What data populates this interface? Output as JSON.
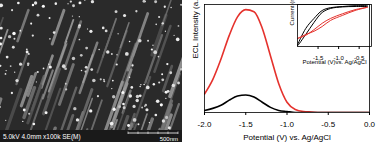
{
  "image": {
    "info": "5.0kV 4.0mm x100k SE(M)",
    "scale_bar": "500nm"
  },
  "chart_data": [
    {
      "type": "line",
      "x_label": "Potential (V) vs. Ag/AgCl",
      "y_label": "ECL Intensity (a.u.)",
      "x": [
        -2.0,
        -1.9,
        -1.8,
        -1.7,
        -1.6,
        -1.5,
        -1.4,
        -1.3,
        -1.2,
        -1.1,
        -1.0,
        -0.9,
        -0.8,
        -0.7,
        -0.6,
        -0.5,
        -0.4,
        -0.3,
        -0.2,
        -0.1,
        0.0
      ],
      "series": [
        {
          "color": "#e5322d",
          "values": [
            18,
            32,
            52,
            75,
            93,
            100,
            98,
            82,
            55,
            28,
            10,
            3,
            1,
            0.5,
            0,
            0,
            0,
            0,
            0,
            0,
            0
          ]
        },
        {
          "color": "#000000",
          "values": [
            2,
            4,
            7,
            12,
            16,
            17,
            15,
            10,
            5,
            2,
            1,
            0,
            0,
            0,
            0,
            0,
            0,
            0,
            0,
            0,
            0
          ]
        }
      ],
      "xlim": [
        -2.0,
        0.0
      ],
      "xticks": [
        {
          "value": -2.0,
          "label": "-2.0"
        },
        -1.5,
        {
          "value": -1.0,
          "label": "-1.0"
        },
        -0.5,
        {
          "value": 0.0,
          "label": "0.0"
        }
      ],
      "ylim": [
        0,
        105
      ],
      "tick_labels": "x"
    },
    {
      "type": "line",
      "x_label": "Potential (V)vs. Ag/AgCl",
      "y_label": "Current (mA)",
      "x": [
        -0.3,
        -0.6,
        -0.9,
        -1.2,
        -1.4,
        -1.6,
        -1.8,
        -2.0,
        -1.8,
        -1.6,
        -1.4,
        -1.2,
        -0.9,
        -0.6,
        -0.3
      ],
      "series": [
        {
          "color": "#000000",
          "values": [
            0,
            0,
            -0.01,
            -0.05,
            -0.15,
            -0.4,
            -0.7,
            -0.98,
            -0.55,
            -0.3,
            -0.1,
            -0.03,
            0,
            0.02,
            0.02
          ]
        },
        {
          "color": "#e5322d",
          "values": [
            -0.02,
            -0.1,
            -0.22,
            -0.35,
            -0.5,
            -0.62,
            -0.7,
            -0.8,
            -0.72,
            -0.58,
            -0.42,
            -0.3,
            -0.18,
            -0.08,
            -0.02
          ]
        }
      ],
      "xlim": [
        -2.0,
        -0.2
      ],
      "xticks": [
        -1.5,
        {
          "value": -1.0,
          "label": "-1.0"
        },
        -0.5
      ],
      "ylim": [
        -1.0,
        0.05
      ],
      "tick_labels": "x"
    }
  ]
}
